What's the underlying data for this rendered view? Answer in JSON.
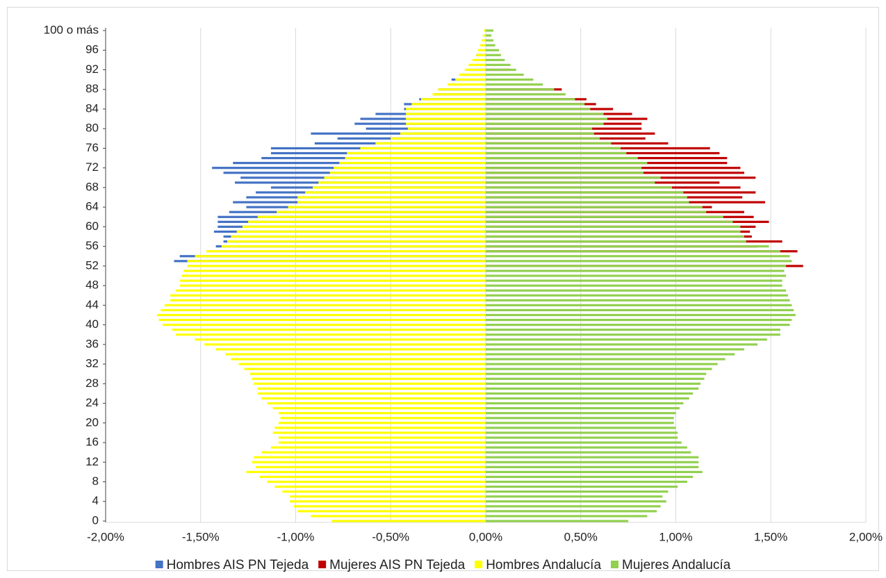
{
  "chart_data": {
    "type": "pyramid",
    "categories": [
      "0",
      null,
      null,
      null,
      "4",
      null,
      null,
      null,
      "8",
      null,
      null,
      null,
      "12",
      null,
      null,
      null,
      "16",
      null,
      null,
      null,
      "20",
      null,
      null,
      null,
      "24",
      null,
      null,
      null,
      "28",
      null,
      null,
      null,
      "32",
      null,
      null,
      null,
      "36",
      null,
      null,
      null,
      "40",
      null,
      null,
      null,
      "44",
      null,
      null,
      null,
      "48",
      null,
      null,
      null,
      "52",
      null,
      null,
      null,
      "56",
      null,
      null,
      null,
      "60",
      null,
      null,
      null,
      "64",
      null,
      null,
      null,
      "68",
      null,
      null,
      null,
      "72",
      null,
      null,
      null,
      "76",
      null,
      null,
      null,
      "80",
      null,
      null,
      null,
      "84",
      null,
      null,
      null,
      "88",
      null,
      null,
      null,
      "92",
      null,
      null,
      null,
      "96",
      null,
      null,
      null,
      "100 o más"
    ],
    "series": [
      {
        "name": "Hombres AIS PN Tejeda",
        "color": "#4472c4",
        "values": [
          null,
          null,
          null,
          null,
          null,
          null,
          null,
          null,
          null,
          null,
          null,
          null,
          null,
          null,
          null,
          null,
          null,
          null,
          null,
          null,
          null,
          null,
          null,
          null,
          null,
          null,
          null,
          null,
          null,
          null,
          null,
          null,
          null,
          null,
          null,
          null,
          null,
          null,
          null,
          null,
          null,
          null,
          null,
          null,
          null,
          null,
          null,
          null,
          null,
          null,
          null,
          null,
          null,
          -1.64,
          -1.61,
          null,
          -1.42,
          -1.38,
          -1.38,
          -1.43,
          -1.41,
          -1.41,
          -1.41,
          -1.35,
          -1.26,
          -1.33,
          -1.26,
          -1.21,
          -1.13,
          -1.32,
          -1.29,
          -1.38,
          -1.44,
          -1.33,
          -1.18,
          -1.13,
          -1.13,
          -0.9,
          -0.78,
          -0.92,
          -0.63,
          -0.69,
          -0.66,
          -0.58,
          -0.43,
          -0.43,
          -0.35,
          -0.27,
          -0.25,
          null,
          -0.18,
          -0.12,
          -0.09,
          null,
          null,
          -0.05,
          null,
          null,
          null,
          null,
          null
        ]
      },
      {
        "name": "Mujeres AIS PN Tejeda",
        "color": "#c00000",
        "values": [
          null,
          null,
          null,
          null,
          null,
          null,
          null,
          null,
          null,
          null,
          null,
          null,
          null,
          null,
          null,
          null,
          null,
          null,
          null,
          null,
          null,
          null,
          null,
          null,
          null,
          null,
          null,
          null,
          null,
          null,
          null,
          null,
          null,
          null,
          null,
          null,
          null,
          null,
          null,
          null,
          null,
          null,
          null,
          null,
          null,
          null,
          null,
          null,
          null,
          null,
          null,
          null,
          1.67,
          null,
          null,
          1.64,
          1.43,
          1.56,
          1.4,
          1.39,
          1.42,
          1.49,
          1.41,
          1.36,
          1.19,
          1.47,
          1.35,
          1.42,
          1.34,
          1.23,
          1.42,
          1.36,
          1.34,
          1.27,
          1.27,
          1.23,
          1.18,
          0.96,
          0.84,
          0.89,
          0.82,
          0.82,
          0.85,
          0.77,
          0.67,
          0.58,
          0.53,
          null,
          0.4,
          null,
          null,
          null,
          0.13,
          null,
          null,
          null,
          null,
          null,
          null,
          null,
          null
        ]
      },
      {
        "name": "Hombres Andalucía",
        "color": "#ffff00",
        "values": [
          -0.81,
          -0.92,
          -0.99,
          -1.01,
          -1.03,
          -1.03,
          -1.07,
          -1.11,
          -1.15,
          -1.19,
          -1.26,
          -1.21,
          -1.23,
          -1.22,
          -1.18,
          -1.13,
          -1.09,
          -1.09,
          -1.12,
          -1.11,
          -1.09,
          -1.08,
          -1.09,
          -1.12,
          -1.15,
          -1.18,
          -1.2,
          -1.2,
          -1.22,
          -1.23,
          -1.24,
          -1.27,
          -1.3,
          -1.34,
          -1.37,
          -1.42,
          -1.48,
          -1.53,
          -1.63,
          -1.65,
          -1.7,
          -1.72,
          -1.73,
          -1.71,
          -1.69,
          -1.66,
          -1.66,
          -1.63,
          -1.61,
          -1.61,
          -1.6,
          -1.59,
          -1.57,
          -1.57,
          -1.53,
          -1.47,
          -1.39,
          -1.36,
          -1.34,
          -1.31,
          -1.28,
          -1.25,
          -1.2,
          -1.1,
          -1.04,
          -0.99,
          -0.99,
          -0.95,
          -0.91,
          -0.88,
          -0.85,
          -0.82,
          -0.8,
          -0.77,
          -0.74,
          -0.73,
          -0.66,
          -0.58,
          -0.5,
          -0.45,
          -0.41,
          -0.42,
          -0.42,
          -0.42,
          -0.42,
          -0.39,
          -0.34,
          -0.28,
          -0.25,
          -0.2,
          -0.16,
          -0.14,
          -0.11,
          -0.09,
          -0.07,
          -0.05,
          -0.04,
          -0.03,
          -0.02,
          -0.015,
          -0.01
        ]
      },
      {
        "name": "Mujeres Andalucía",
        "color": "#92d050",
        "values": [
          0.75,
          0.85,
          0.9,
          0.92,
          0.95,
          0.93,
          0.96,
          1.01,
          1.06,
          1.09,
          1.14,
          1.12,
          1.12,
          1.12,
          1.08,
          1.06,
          1.03,
          1.01,
          1.01,
          1.0,
          0.99,
          0.99,
          1.0,
          1.02,
          1.04,
          1.07,
          1.09,
          1.12,
          1.13,
          1.15,
          1.16,
          1.19,
          1.22,
          1.26,
          1.31,
          1.36,
          1.43,
          1.48,
          1.55,
          1.55,
          1.6,
          1.61,
          1.63,
          1.62,
          1.61,
          1.6,
          1.59,
          1.58,
          1.56,
          1.56,
          1.58,
          1.57,
          1.58,
          1.61,
          1.6,
          1.55,
          1.49,
          1.37,
          1.36,
          1.34,
          1.34,
          1.3,
          1.25,
          1.16,
          1.14,
          1.07,
          1.06,
          1.04,
          0.98,
          0.89,
          0.92,
          0.83,
          0.82,
          0.85,
          0.8,
          0.74,
          0.71,
          0.66,
          0.6,
          0.57,
          0.56,
          0.62,
          0.64,
          0.62,
          0.55,
          0.52,
          0.47,
          0.42,
          0.36,
          0.3,
          0.25,
          0.2,
          0.16,
          0.13,
          0.1,
          0.08,
          0.07,
          0.05,
          0.04,
          0.03,
          0.04
        ]
      }
    ],
    "xlim": [
      -2,
      2
    ],
    "xticks": [
      {
        "value": -2,
        "label": "-2,00%"
      },
      {
        "value": -1.5,
        "label": "-1,50%"
      },
      {
        "value": -1,
        "label": "-1,00%"
      },
      {
        "value": -0.5,
        "label": "-0,50%"
      },
      {
        "value": 0,
        "label": "0,00%"
      },
      {
        "value": 0.5,
        "label": "0,50%"
      },
      {
        "value": 1,
        "label": "1,00%"
      },
      {
        "value": 1.5,
        "label": "1,50%"
      },
      {
        "value": 2,
        "label": "2,00%"
      }
    ],
    "grid": true,
    "legend": "bottom"
  }
}
